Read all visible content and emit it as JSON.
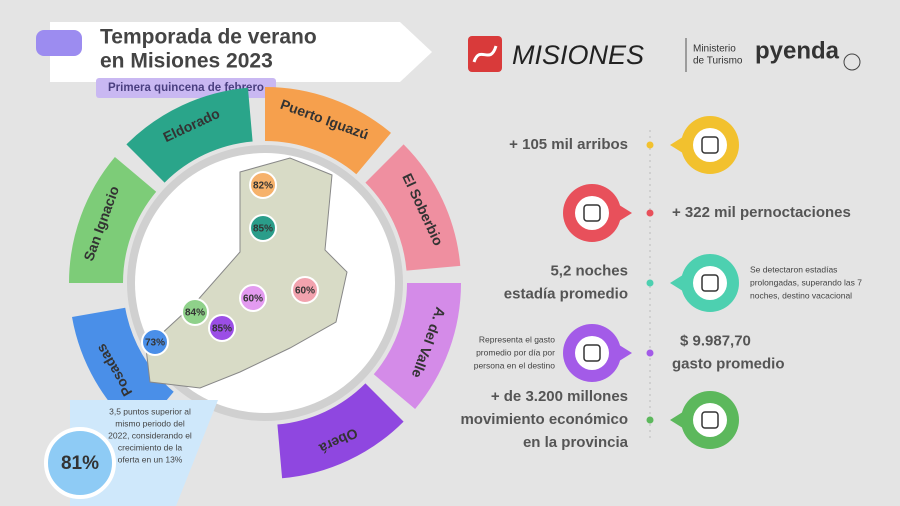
{
  "header": {
    "title": [
      "Temporada de verano",
      "en Misiones 2023"
    ],
    "subtitle": "Primera quincena de febrero"
  },
  "logos": {
    "misiones": "MISIONES",
    "ministry": [
      "Ministerio",
      "de Turismo"
    ],
    "pyenda": "pyenda"
  },
  "regions": [
    "Posadas",
    "San Ignacio",
    "Eldorado",
    "Puerto Iguazú",
    "El Soberbio",
    "A. del Valle",
    "Oberá"
  ],
  "map_labels": [
    "82%",
    "85%",
    "84%",
    "60%",
    "85%",
    "60%",
    "73%"
  ],
  "note": {
    "lines": [
      "3,5 puntos superior al",
      "mismo periodo del",
      "2022, considerando el",
      "crecimiento de la",
      "oferta en un 13%"
    ],
    "value": "81%"
  },
  "stats": [
    {
      "lines": [
        "+ 105 mil arribos"
      ]
    },
    {
      "lines": [
        "+ 322 mil pernoctaciones"
      ]
    },
    {
      "lines": [
        "5,2 noches",
        "estadía promedio"
      ],
      "note": [
        "Se detectaron estadías",
        "prolongadas, superando las 7",
        "noches, destino vacacional"
      ]
    },
    {
      "lines": [
        "$ 9.987,70",
        "gasto promedio"
      ],
      "note": [
        "Representa el gasto",
        "promedio por día por",
        "persona en el destino"
      ]
    },
    {
      "lines": [
        "+ de 3.200 millones",
        "movimiento económico",
        "en la provincia"
      ]
    }
  ]
}
